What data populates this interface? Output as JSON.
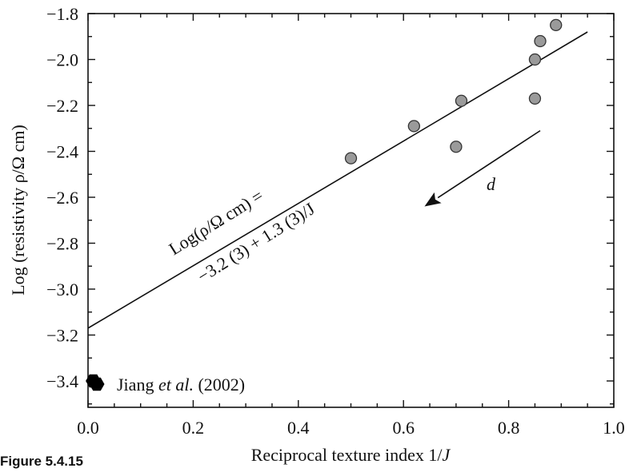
{
  "chart_data": {
    "type": "scatter",
    "title": "",
    "xlabel": {
      "before": "Reciprocal texture index 1/",
      "var": "J"
    },
    "ylabel": "Log (resistivity ρ/Ω cm)",
    "xlim": [
      0.0,
      1.0
    ],
    "ylim": [
      -3.5,
      -1.8
    ],
    "x_ticks": [
      "0.0",
      "0.2",
      "0.4",
      "0.6",
      "0.8",
      "1.0"
    ],
    "y_ticks": [
      "-1.8",
      "-2.0",
      "-2.2",
      "-2.4",
      "-2.6",
      "-2.8",
      "-3.0",
      "-3.2",
      "-3.4"
    ],
    "grid": false,
    "series": [
      {
        "marker": "circle",
        "color": "#9a9a9a",
        "points": [
          {
            "x": 0.5,
            "y": -2.43
          },
          {
            "x": 0.62,
            "y": -2.29
          },
          {
            "x": 0.7,
            "y": -2.38
          },
          {
            "x": 0.71,
            "y": -2.18
          },
          {
            "x": 0.85,
            "y": -2.17
          },
          {
            "x": 0.85,
            "y": -2.0
          },
          {
            "x": 0.86,
            "y": -1.92
          },
          {
            "x": 0.89,
            "y": -1.85
          }
        ]
      },
      {
        "name": "Jiang et al. (2002)",
        "marker": "hexagon",
        "color": "#000000",
        "points": [
          {
            "x": 0.01,
            "y": -3.4
          }
        ]
      }
    ],
    "fit_line": {
      "x": [
        0.0,
        0.95
      ],
      "y": [
        -3.17,
        -1.88
      ]
    },
    "fit_label": {
      "line1": "Log(ρ/Ω cm) =",
      "line2": "−3.2 (3) + 1.3 (3)/J"
    },
    "legend": {
      "position": "bottom-left",
      "entry": {
        "text_before": "Jiang ",
        "text_italic": "et al.",
        "text_after": " (2002)"
      }
    },
    "arrow": {
      "label": "d",
      "from": [
        0.86,
        -2.31
      ],
      "to": [
        0.64,
        -2.64
      ]
    }
  },
  "caption": "Figure 5.4.15"
}
